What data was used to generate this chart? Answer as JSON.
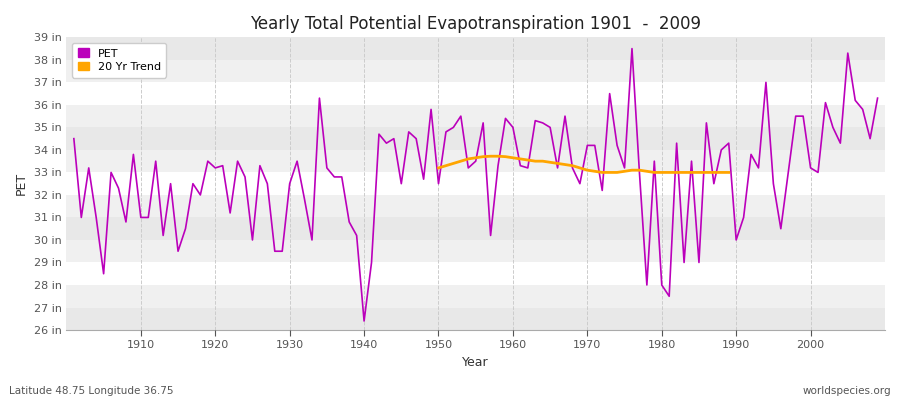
{
  "title": "Yearly Total Potential Evapotranspiration 1901  -  2009",
  "xlabel": "Year",
  "ylabel": "PET",
  "subtitle_left": "Latitude 48.75 Longitude 36.75",
  "subtitle_right": "worldspecies.org",
  "ylim": [
    26,
    39
  ],
  "yticks": [
    26,
    27,
    28,
    29,
    30,
    31,
    32,
    33,
    34,
    35,
    36,
    37,
    38,
    39
  ],
  "ytick_labels": [
    "26 in",
    "27 in",
    "28 in",
    "29 in",
    "30 in",
    "31 in",
    "32 in",
    "33 in",
    "34 in",
    "35 in",
    "36 in",
    "37 in",
    "38 in",
    "39 in"
  ],
  "xticks": [
    1910,
    1920,
    1930,
    1940,
    1950,
    1960,
    1970,
    1980,
    1990,
    2000
  ],
  "pet_color": "#bb00bb",
  "trend_color": "#ffa500",
  "bg_color": "#ffffff",
  "plot_bg_color": "#f0f0f0",
  "band_color": "#e8e8e8",
  "legend_pet": "PET",
  "legend_trend": "20 Yr Trend",
  "years": [
    1901,
    1902,
    1903,
    1904,
    1905,
    1906,
    1907,
    1908,
    1909,
    1910,
    1911,
    1912,
    1913,
    1914,
    1915,
    1916,
    1917,
    1918,
    1919,
    1920,
    1921,
    1922,
    1923,
    1924,
    1925,
    1926,
    1927,
    1928,
    1929,
    1930,
    1931,
    1932,
    1933,
    1934,
    1935,
    1936,
    1937,
    1938,
    1939,
    1940,
    1941,
    1942,
    1943,
    1944,
    1945,
    1946,
    1947,
    1948,
    1949,
    1950,
    1951,
    1952,
    1953,
    1954,
    1955,
    1956,
    1957,
    1958,
    1959,
    1960,
    1961,
    1962,
    1963,
    1964,
    1965,
    1966,
    1967,
    1968,
    1969,
    1970,
    1971,
    1972,
    1973,
    1974,
    1975,
    1976,
    1977,
    1978,
    1979,
    1980,
    1981,
    1982,
    1983,
    1984,
    1985,
    1986,
    1987,
    1988,
    1989,
    1990,
    1991,
    1992,
    1993,
    1994,
    1995,
    1996,
    1997,
    1998,
    1999,
    2000,
    2001,
    2002,
    2003,
    2004,
    2005,
    2006,
    2007,
    2008,
    2009
  ],
  "pet_values": [
    34.5,
    31.0,
    33.2,
    31.0,
    28.5,
    33.0,
    32.3,
    30.8,
    33.8,
    31.0,
    31.0,
    33.5,
    30.2,
    32.5,
    29.5,
    30.5,
    32.5,
    32.0,
    33.5,
    33.2,
    33.3,
    31.2,
    33.5,
    32.8,
    30.0,
    33.3,
    32.5,
    29.5,
    29.5,
    32.5,
    33.5,
    31.8,
    30.0,
    36.3,
    33.2,
    32.8,
    32.8,
    30.8,
    30.2,
    26.4,
    29.0,
    34.7,
    34.3,
    34.5,
    32.5,
    34.8,
    34.5,
    32.7,
    35.8,
    32.5,
    34.8,
    35.0,
    35.5,
    33.2,
    33.5,
    35.2,
    30.2,
    33.3,
    35.4,
    35.0,
    33.3,
    33.2,
    35.3,
    35.2,
    35.0,
    33.2,
    35.5,
    33.2,
    32.5,
    34.2,
    34.2,
    32.2,
    36.5,
    34.2,
    33.2,
    38.5,
    33.0,
    28.0,
    33.5,
    28.0,
    27.5,
    34.3,
    29.0,
    33.5,
    29.0,
    35.2,
    32.5,
    34.0,
    34.3,
    30.0,
    31.0,
    33.8,
    33.2,
    37.0,
    32.5,
    30.5,
    33.0,
    35.5,
    35.5,
    33.2,
    33.0,
    36.1,
    35.0,
    34.3,
    38.3,
    36.2,
    35.8,
    34.5,
    36.3
  ],
  "trend_years": [
    1950,
    1951,
    1952,
    1953,
    1954,
    1955,
    1956,
    1957,
    1958,
    1959,
    1960,
    1961,
    1962,
    1963,
    1964,
    1965,
    1966,
    1967,
    1968,
    1969,
    1970,
    1971,
    1972,
    1973,
    1974,
    1975,
    1976,
    1977,
    1978,
    1979,
    1980,
    1981,
    1982,
    1983,
    1984,
    1985,
    1986,
    1987,
    1988,
    1989
  ],
  "trend_values": [
    33.2,
    33.3,
    33.4,
    33.5,
    33.6,
    33.65,
    33.7,
    33.72,
    33.72,
    33.7,
    33.65,
    33.6,
    33.55,
    33.5,
    33.5,
    33.45,
    33.4,
    33.35,
    33.3,
    33.2,
    33.1,
    33.05,
    33.0,
    33.0,
    33.0,
    33.05,
    33.1,
    33.1,
    33.05,
    33.0,
    33.0,
    33.0,
    33.0,
    33.0,
    33.0,
    33.0,
    33.0,
    33.0,
    33.0,
    33.0
  ]
}
